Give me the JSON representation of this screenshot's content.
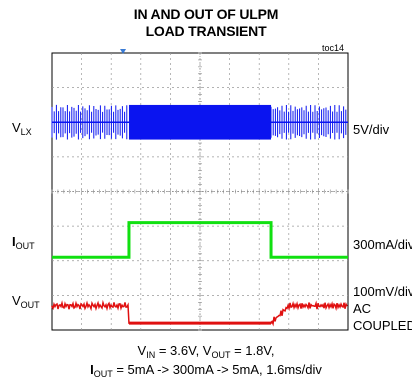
{
  "chart_data": {
    "type": "line",
    "title_line1": "IN AND OUT OF ULPM",
    "title_line2": "LOAD TRANSIENT",
    "figure_tag": "toc14",
    "grid": true,
    "x_divisions": 10,
    "y_divisions": 8,
    "x_scale_label": "1.6ms/div",
    "transient_window_div": [
      2.6,
      7.4
    ],
    "channels": [
      {
        "name": "V",
        "sub": "LX",
        "scale": "5V/div",
        "color": "#0a14f0",
        "low_state_amplitude_div": 0.5,
        "high_state_amplitude_div": 0.5,
        "level_div": 2.0,
        "note": "switching"
      },
      {
        "name": "I",
        "sub": "OUT",
        "scale": "300mA/div",
        "color": "#10e010",
        "low_value": "5mA",
        "high_value": "300mA",
        "step_div": 1.0,
        "level_div": -1.9
      },
      {
        "name": "V",
        "sub": "OUT",
        "scale_line1": "100mV/div",
        "scale_line2": "AC",
        "scale_line3": "COUPLED",
        "color": "#e01010",
        "step_div": -0.5,
        "level_div": -3.3
      }
    ],
    "conditions_line1": {
      "vin_sym": "V",
      "vin_sub": "IN",
      "vin_val": " = 3.6V, ",
      "vout_sym": "V",
      "vout_sub": "OUT",
      "vout_val": " = 1.8V,"
    },
    "conditions_line2": {
      "iout_sym": "I",
      "iout_sub": "OUT",
      "iout_val": " = 5mA -> 300mA -> 5mA, 1.6ms/div"
    }
  }
}
